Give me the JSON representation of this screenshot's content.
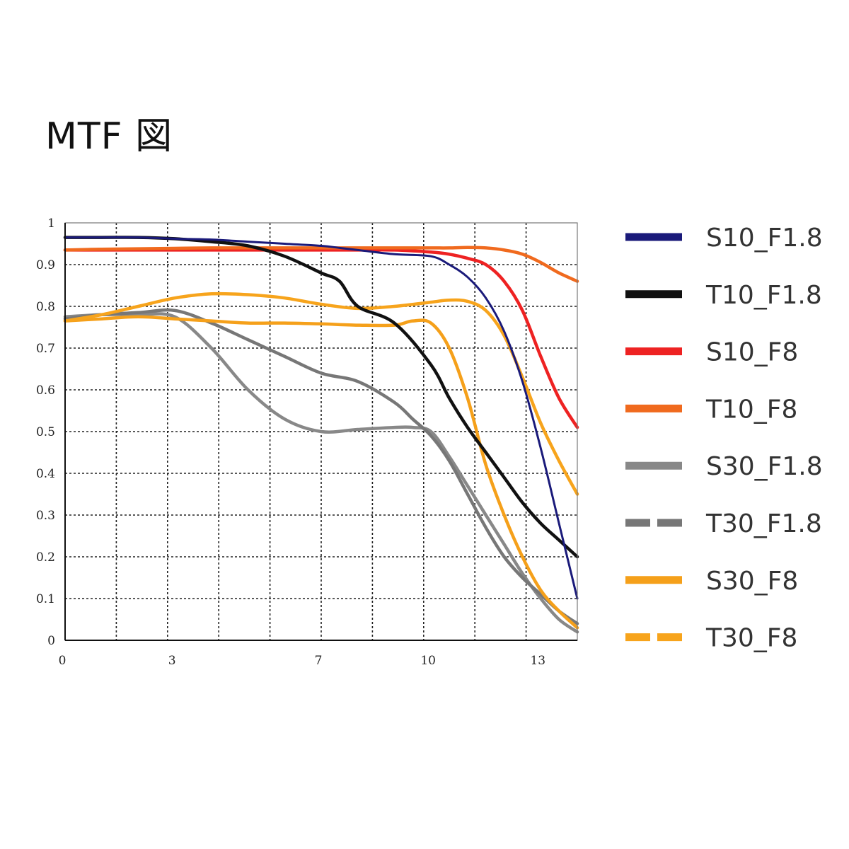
{
  "title": "MTF 図",
  "chart_data": {
    "type": "line",
    "title": "MTF 図",
    "xlabel": "",
    "ylabel": "",
    "xlim": [
      0,
      14
    ],
    "ylim": [
      0,
      1
    ],
    "x_ticks": [
      0,
      3,
      7,
      10,
      13
    ],
    "x_tick_labels": [
      "0",
      "3",
      "7",
      "10",
      "13"
    ],
    "y_ticks": [
      0,
      0.1,
      0.2,
      0.3,
      0.4,
      0.5,
      0.6,
      0.7,
      0.8,
      0.9,
      1
    ],
    "y_tick_labels": [
      "0",
      "0.1",
      "0.2",
      "0.3",
      "0.4",
      "0.5",
      "0.6",
      "0.7",
      "0.8",
      "0.9",
      "1"
    ],
    "grid": true,
    "legend_position": "right",
    "series": [
      {
        "name": "S10_F1.8",
        "color": "#1a1a7a",
        "dash": "solid",
        "x": [
          0,
          1,
          2,
          3,
          4,
          5,
          6,
          7,
          7.5,
          8,
          9,
          10,
          10.5,
          11,
          11.5,
          12,
          12.5,
          13,
          13.5,
          14
        ],
        "y": [
          0.965,
          0.965,
          0.965,
          0.962,
          0.96,
          0.955,
          0.95,
          0.945,
          0.94,
          0.935,
          0.925,
          0.92,
          0.9,
          0.87,
          0.82,
          0.74,
          0.62,
          0.46,
          0.28,
          0.1
        ]
      },
      {
        "name": "T10_F1.8",
        "color": "#111111",
        "dash": "solid",
        "x": [
          0,
          1,
          2,
          3,
          4,
          5,
          6,
          7,
          7.5,
          8,
          9,
          10,
          10.5,
          11,
          11.5,
          12,
          12.5,
          13,
          13.5,
          14
        ],
        "y": [
          0.965,
          0.965,
          0.965,
          0.962,
          0.955,
          0.945,
          0.92,
          0.88,
          0.86,
          0.8,
          0.76,
          0.66,
          0.58,
          0.51,
          0.45,
          0.39,
          0.33,
          0.28,
          0.24,
          0.2
        ]
      },
      {
        "name": "S10_F8",
        "color": "#ee2222",
        "dash": "solid",
        "x": [
          0,
          1,
          2,
          3,
          4,
          5,
          6,
          7,
          8,
          9,
          10,
          10.5,
          11,
          11.5,
          12,
          12.5,
          13,
          13.5,
          14
        ],
        "y": [
          0.935,
          0.935,
          0.935,
          0.935,
          0.935,
          0.935,
          0.935,
          0.935,
          0.935,
          0.935,
          0.93,
          0.925,
          0.915,
          0.9,
          0.86,
          0.79,
          0.68,
          0.58,
          0.51
        ]
      },
      {
        "name": "T10_F8",
        "color": "#f06a1e",
        "dash": "solid",
        "x": [
          0,
          1,
          2,
          3,
          4,
          5,
          6,
          7,
          8,
          9,
          10,
          10.5,
          11,
          11.5,
          12,
          12.5,
          13,
          13.5,
          14
        ],
        "y": [
          0.935,
          0.937,
          0.938,
          0.939,
          0.94,
          0.94,
          0.94,
          0.94,
          0.94,
          0.94,
          0.94,
          0.94,
          0.941,
          0.94,
          0.935,
          0.925,
          0.905,
          0.88,
          0.86
        ]
      },
      {
        "name": "S30_F1.8",
        "color": "#888888",
        "dash": "solid",
        "x": [
          0,
          1,
          2,
          3,
          4,
          5,
          6,
          7,
          8,
          9,
          9.5,
          10,
          10.5,
          11,
          11.5,
          12,
          12.5,
          13,
          13.5,
          14
        ],
        "y": [
          0.775,
          0.78,
          0.78,
          0.775,
          0.7,
          0.6,
          0.53,
          0.5,
          0.505,
          0.51,
          0.51,
          0.5,
          0.44,
          0.37,
          0.3,
          0.23,
          0.16,
          0.1,
          0.05,
          0.02
        ]
      },
      {
        "name": "T30_F1.8",
        "color": "#777777",
        "dash": "dashed",
        "x": [
          0,
          1,
          2,
          3,
          4,
          5,
          6,
          7,
          8,
          9,
          9.5,
          10,
          10.5,
          11,
          11.5,
          12,
          12.5,
          13,
          13.5,
          14
        ],
        "y": [
          0.77,
          0.78,
          0.785,
          0.79,
          0.76,
          0.72,
          0.68,
          0.64,
          0.62,
          0.57,
          0.53,
          0.49,
          0.43,
          0.35,
          0.27,
          0.2,
          0.15,
          0.11,
          0.07,
          0.04
        ]
      },
      {
        "name": "S30_F8",
        "color": "#f5a01a",
        "dash": "solid",
        "x": [
          0,
          1,
          2,
          3,
          4,
          5,
          6,
          7,
          8,
          9,
          9.5,
          10,
          10.5,
          11,
          11.5,
          12,
          12.5,
          13,
          13.5,
          14
        ],
        "y": [
          0.765,
          0.77,
          0.775,
          0.77,
          0.765,
          0.76,
          0.76,
          0.758,
          0.755,
          0.755,
          0.765,
          0.76,
          0.7,
          0.58,
          0.42,
          0.3,
          0.2,
          0.12,
          0.07,
          0.03
        ]
      },
      {
        "name": "T30_F8",
        "color": "#f7a41c",
        "dash": "dashed",
        "x": [
          0,
          1,
          2,
          3,
          4,
          5,
          6,
          7,
          8,
          9,
          10,
          10.5,
          11,
          11.5,
          12,
          12.5,
          13,
          13.5,
          14
        ],
        "y": [
          0.765,
          0.78,
          0.8,
          0.82,
          0.83,
          0.828,
          0.82,
          0.805,
          0.795,
          0.8,
          0.81,
          0.815,
          0.812,
          0.79,
          0.73,
          0.63,
          0.52,
          0.43,
          0.35
        ]
      }
    ]
  }
}
